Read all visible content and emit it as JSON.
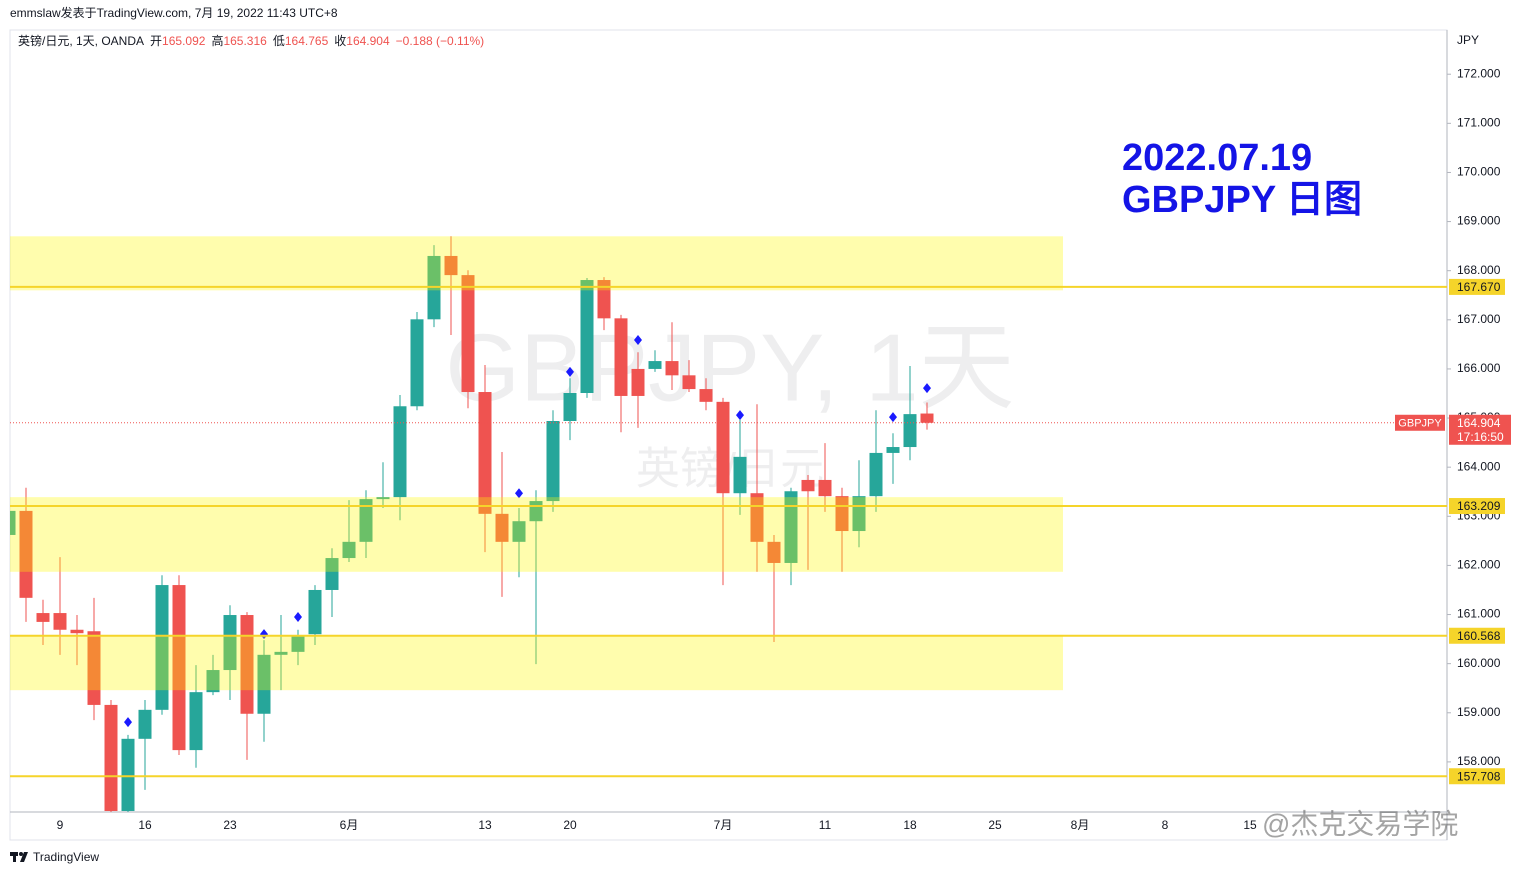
{
  "header": "emmslaw发表于TradingView.com, 7月 19, 2022 11:43 UTC+8",
  "footer": "TradingView",
  "watermark_credit": "@杰克交易学院",
  "chart_data": {
    "type": "candlestick",
    "legend": {
      "symbol": "英镑/日元, 1天, OANDA",
      "open_label": "开",
      "high_label": "高",
      "low_label": "低",
      "close_label": "收",
      "change": "−0.188 (−0.11%)"
    },
    "watermark": "GBPJPY, 1天",
    "watermark_sub": "英镑/日元",
    "annotation": [
      "2022.07.19",
      "GBPJPY 日图"
    ],
    "y_unit": "JPY",
    "categories": [
      null,
      null,
      null,
      "9",
      null,
      null,
      null,
      null,
      "16",
      null,
      null,
      null,
      null,
      "23",
      null,
      null,
      null,
      null,
      null,
      null,
      "6月",
      null,
      null,
      null,
      null,
      null,
      null,
      null,
      "13",
      null,
      null,
      null,
      null,
      "20",
      null,
      null,
      null,
      null,
      null,
      null,
      null,
      null,
      "7月",
      null,
      null,
      null,
      null,
      null,
      "11",
      null,
      null,
      null,
      null,
      "18",
      null,
      null,
      null,
      null,
      "25",
      null,
      null,
      null,
      null,
      "8月",
      null,
      null,
      null,
      null,
      "8",
      null,
      null,
      null,
      null,
      "15"
    ],
    "open": [
      162.62,
      163.11,
      161.03,
      161.03,
      160.69,
      160.66,
      159.16,
      157.0,
      158.47,
      159.06,
      161.6,
      158.24,
      159.42,
      159.87,
      160.99,
      158.98,
      160.18,
      160.24,
      160.6,
      161.5,
      162.15,
      162.48,
      163.35,
      163.39,
      165.24,
      167.01,
      168.3,
      167.91,
      165.53,
      163.05,
      162.48,
      162.9,
      163.31,
      164.94,
      165.51,
      167.81,
      167.03,
      166.0,
      166.0,
      166.16,
      165.87,
      165.59,
      165.33,
      163.47,
      163.47,
      162.48,
      162.05,
      163.74,
      163.74,
      163.41,
      162.7,
      163.41,
      164.29,
      164.41,
      165.092,
      null,
      null,
      null,
      null,
      null,
      null,
      null,
      null,
      null,
      null,
      null,
      null,
      null,
      null,
      null,
      null,
      null,
      null,
      null
    ],
    "high": [
      163.23,
      163.58,
      161.3,
      162.17,
      160.99,
      161.34,
      159.26,
      158.55,
      159.26,
      161.8,
      161.8,
      159.97,
      160.18,
      161.19,
      161.05,
      160.48,
      160.99,
      160.69,
      161.6,
      162.35,
      163.33,
      163.53,
      164.1,
      165.47,
      167.16,
      168.52,
      168.7,
      168.01,
      166.08,
      164.31,
      163.17,
      163.53,
      165.16,
      165.81,
      167.85,
      167.87,
      167.1,
      166.34,
      166.38,
      166.95,
      166.18,
      165.81,
      165.41,
      164.96,
      165.28,
      162.62,
      163.58,
      163.84,
      164.49,
      163.58,
      164.14,
      165.16,
      164.69,
      166.06,
      165.316,
      null,
      null,
      null,
      null,
      null,
      null,
      null,
      null,
      null,
      null,
      null,
      null,
      null,
      null,
      null,
      null,
      null,
      null,
      null
    ],
    "low": [
      162.52,
      160.85,
      160.38,
      160.18,
      159.97,
      158.85,
      156.9,
      156.92,
      157.43,
      158.96,
      158.14,
      157.88,
      159.36,
      159.26,
      158.04,
      158.41,
      159.46,
      159.97,
      160.38,
      160.95,
      162.07,
      162.15,
      163.17,
      162.92,
      165.16,
      166.85,
      166.69,
      165.2,
      162.27,
      161.36,
      161.76,
      159.99,
      163.09,
      164.55,
      165.41,
      166.79,
      164.71,
      164.8,
      165.94,
      165.57,
      165.53,
      165.16,
      161.6,
      163.03,
      161.87,
      160.44,
      161.6,
      161.91,
      163.09,
      161.87,
      162.37,
      163.09,
      163.66,
      164.14,
      164.765,
      null,
      null,
      null,
      null,
      null,
      null,
      null,
      null,
      null,
      null,
      null,
      null,
      null,
      null,
      null,
      null,
      null,
      null,
      null
    ],
    "close": [
      163.11,
      161.34,
      160.85,
      160.69,
      160.62,
      159.16,
      157.0,
      158.47,
      159.06,
      161.6,
      158.24,
      159.42,
      159.87,
      160.99,
      158.98,
      160.18,
      160.24,
      160.56,
      161.5,
      162.15,
      162.48,
      163.35,
      163.39,
      165.24,
      167.01,
      168.3,
      167.91,
      165.53,
      163.05,
      162.48,
      162.9,
      163.31,
      164.94,
      165.51,
      167.81,
      167.03,
      165.45,
      165.45,
      166.16,
      165.87,
      165.59,
      165.33,
      163.47,
      164.21,
      162.48,
      162.05,
      163.51,
      163.51,
      163.41,
      162.7,
      163.41,
      164.29,
      164.41,
      165.08,
      164.904,
      null,
      null,
      null,
      null,
      null,
      null,
      null,
      null,
      null,
      null,
      null,
      null,
      null,
      null,
      null,
      null,
      null,
      null,
      null
    ],
    "markers": [
      null,
      null,
      null,
      null,
      null,
      null,
      null,
      158.81,
      null,
      null,
      null,
      null,
      null,
      null,
      null,
      160.6,
      null,
      160.95,
      null,
      null,
      null,
      null,
      null,
      null,
      null,
      null,
      null,
      null,
      null,
      null,
      163.47,
      null,
      null,
      165.94,
      null,
      null,
      null,
      166.59,
      null,
      null,
      null,
      null,
      null,
      165.06,
      null,
      null,
      null,
      null,
      null,
      null,
      null,
      null,
      165.02,
      null,
      165.61,
      null,
      null,
      null,
      null,
      null,
      null,
      null,
      null,
      null,
      null,
      null,
      null,
      null,
      null,
      null,
      null,
      null,
      null,
      null
    ],
    "up_color": "#26a69a",
    "down_color": "#ef5350",
    "marker_color": "#1a1aff",
    "zones": [
      {
        "from": 167.6,
        "to": 168.7
      },
      {
        "from": 161.87,
        "to": 163.39
      },
      {
        "from": 159.46,
        "to": 160.56
      }
    ],
    "zone_color": "rgba(255,250,0,0.32)",
    "levels": [
      {
        "value": 167.67,
        "label": "167.670"
      },
      {
        "value": 163.209,
        "label": "163.209"
      },
      {
        "value": 160.568,
        "label": "160.568"
      },
      {
        "value": 157.708,
        "label": "157.708"
      }
    ],
    "level_color": "#f5d42a",
    "last_price": {
      "symbol": "GBPJPY",
      "value": 164.904,
      "countdown": "17:16:50"
    },
    "ylim": [
      156.98,
      172.9
    ],
    "yticks": [
      {
        "value": 158,
        "label": "158.000"
      },
      {
        "value": 159,
        "label": "159.000"
      },
      {
        "value": 160,
        "label": "160.000"
      },
      {
        "value": 161,
        "label": "161.000"
      },
      {
        "value": 162,
        "label": "162.000"
      },
      {
        "value": 163,
        "label": "163.000"
      },
      {
        "value": 164,
        "label": "164.000"
      },
      {
        "value": 165,
        "label": "165.000"
      },
      {
        "value": 166,
        "label": "166.000"
      },
      {
        "value": 167,
        "label": "167.000"
      },
      {
        "value": 168,
        "label": "168.000"
      },
      {
        "value": 169,
        "label": "169.000"
      },
      {
        "value": 170,
        "label": "170.000"
      },
      {
        "value": 171,
        "label": "171.000"
      },
      {
        "value": 172,
        "label": "172.000"
      }
    ],
    "grid": false
  }
}
